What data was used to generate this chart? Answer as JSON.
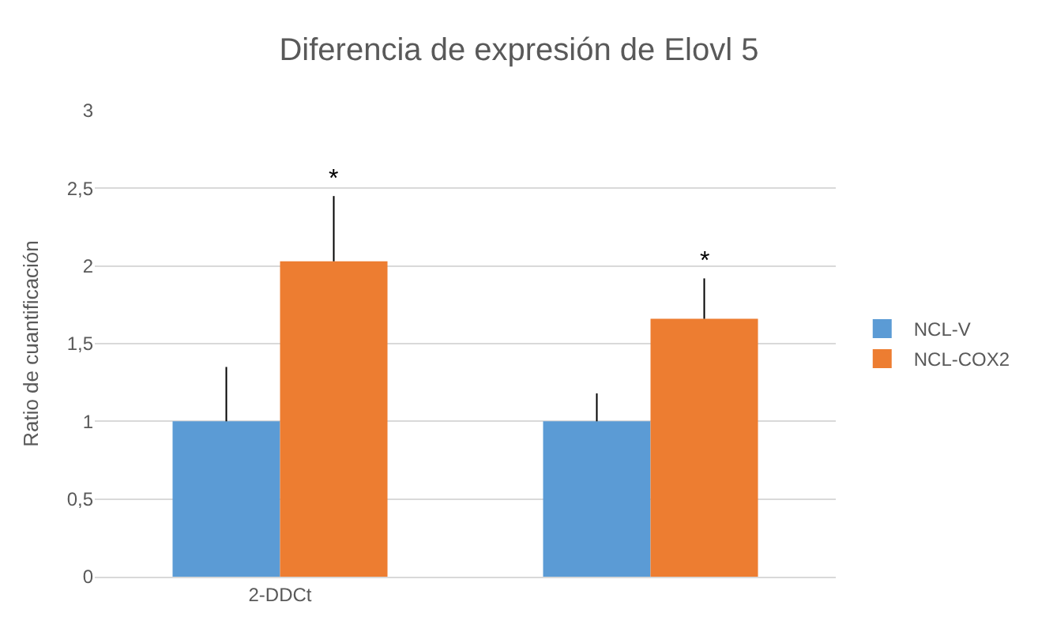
{
  "chart_data": {
    "type": "bar",
    "title": "Diferencia de expresión de Elovl 5",
    "ylabel": "Ratio de cuantificación",
    "categories": [
      "2-DDCt",
      null
    ],
    "series": [
      {
        "name": "NCL-V",
        "color": "#5b9bd5",
        "values": [
          1,
          1
        ],
        "errors": [
          [
            1,
            1.35
          ],
          [
            1,
            1.18
          ]
        ]
      },
      {
        "name": "NCL-COX2",
        "color": "#ed7d31",
        "values": [
          2.03,
          1.66
        ],
        "errors": [
          [
            2.03,
            2.45
          ],
          [
            1.66,
            1.92
          ]
        ]
      }
    ],
    "annotations": [
      "*",
      "*"
    ],
    "ylim": [
      0,
      3
    ],
    "yticks": [
      {
        "value": 0,
        "label": "0"
      },
      {
        "value": 0.5,
        "label": "0,5"
      },
      {
        "value": 1,
        "label": "1"
      },
      {
        "value": 1.5,
        "label": "1,5"
      },
      {
        "value": 2,
        "label": "2"
      },
      {
        "value": 2.5,
        "label": "2,5"
      },
      {
        "value": 3,
        "label": "3"
      }
    ],
    "grid": "y",
    "legend": "right"
  }
}
